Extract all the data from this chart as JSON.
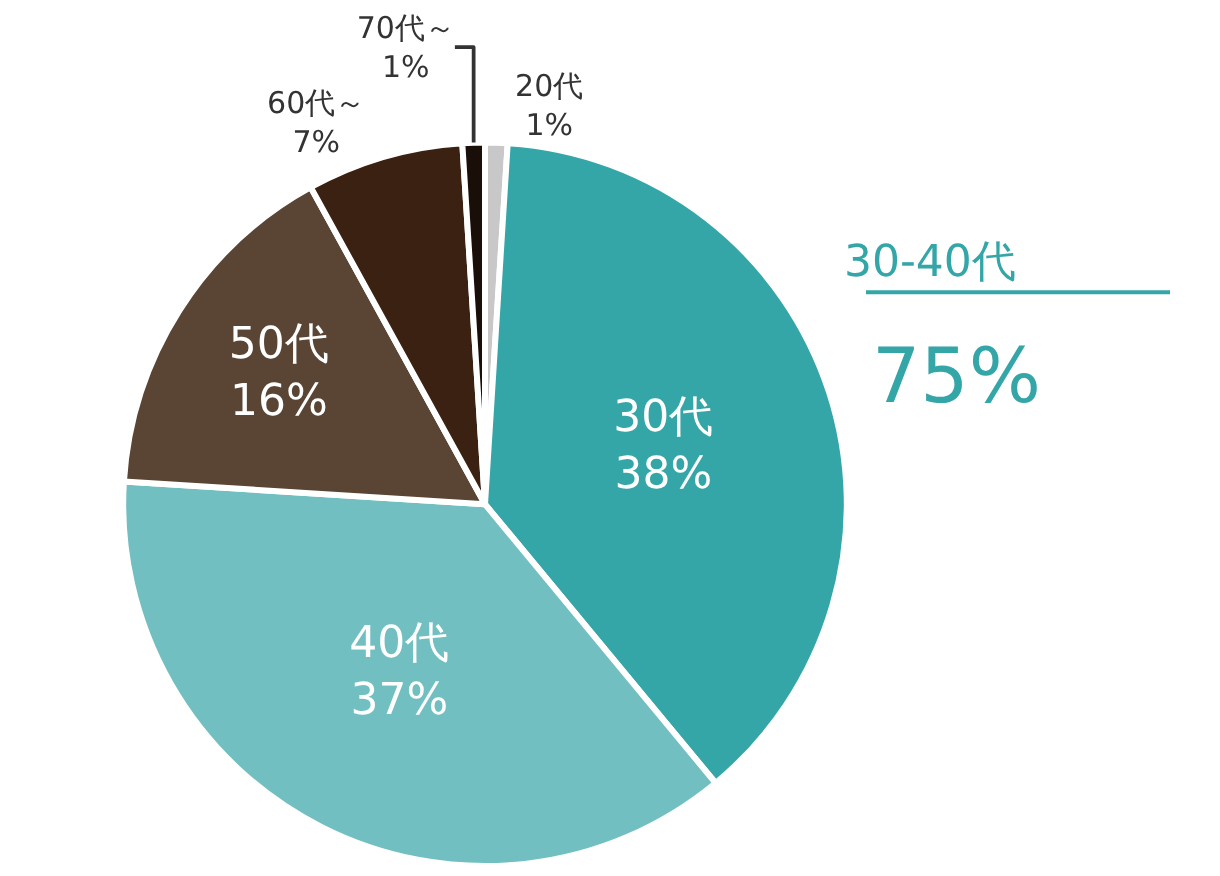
{
  "chart_data": {
    "type": "pie",
    "categories": [
      "20代",
      "30代",
      "40代",
      "50代",
      "60代～",
      "70代～"
    ],
    "values": [
      1,
      38,
      37,
      16,
      7,
      1
    ],
    "value_labels": [
      "1%",
      "38%",
      "37%",
      "16%",
      "7%",
      "1%"
    ],
    "colors": [
      "#c8c8c8",
      "#35a6a8",
      "#72bfc1",
      "#5a4434",
      "#3a2112",
      "#1a0f08"
    ],
    "annotations": [
      "30-40代",
      "75%"
    ],
    "legend": false
  }
}
